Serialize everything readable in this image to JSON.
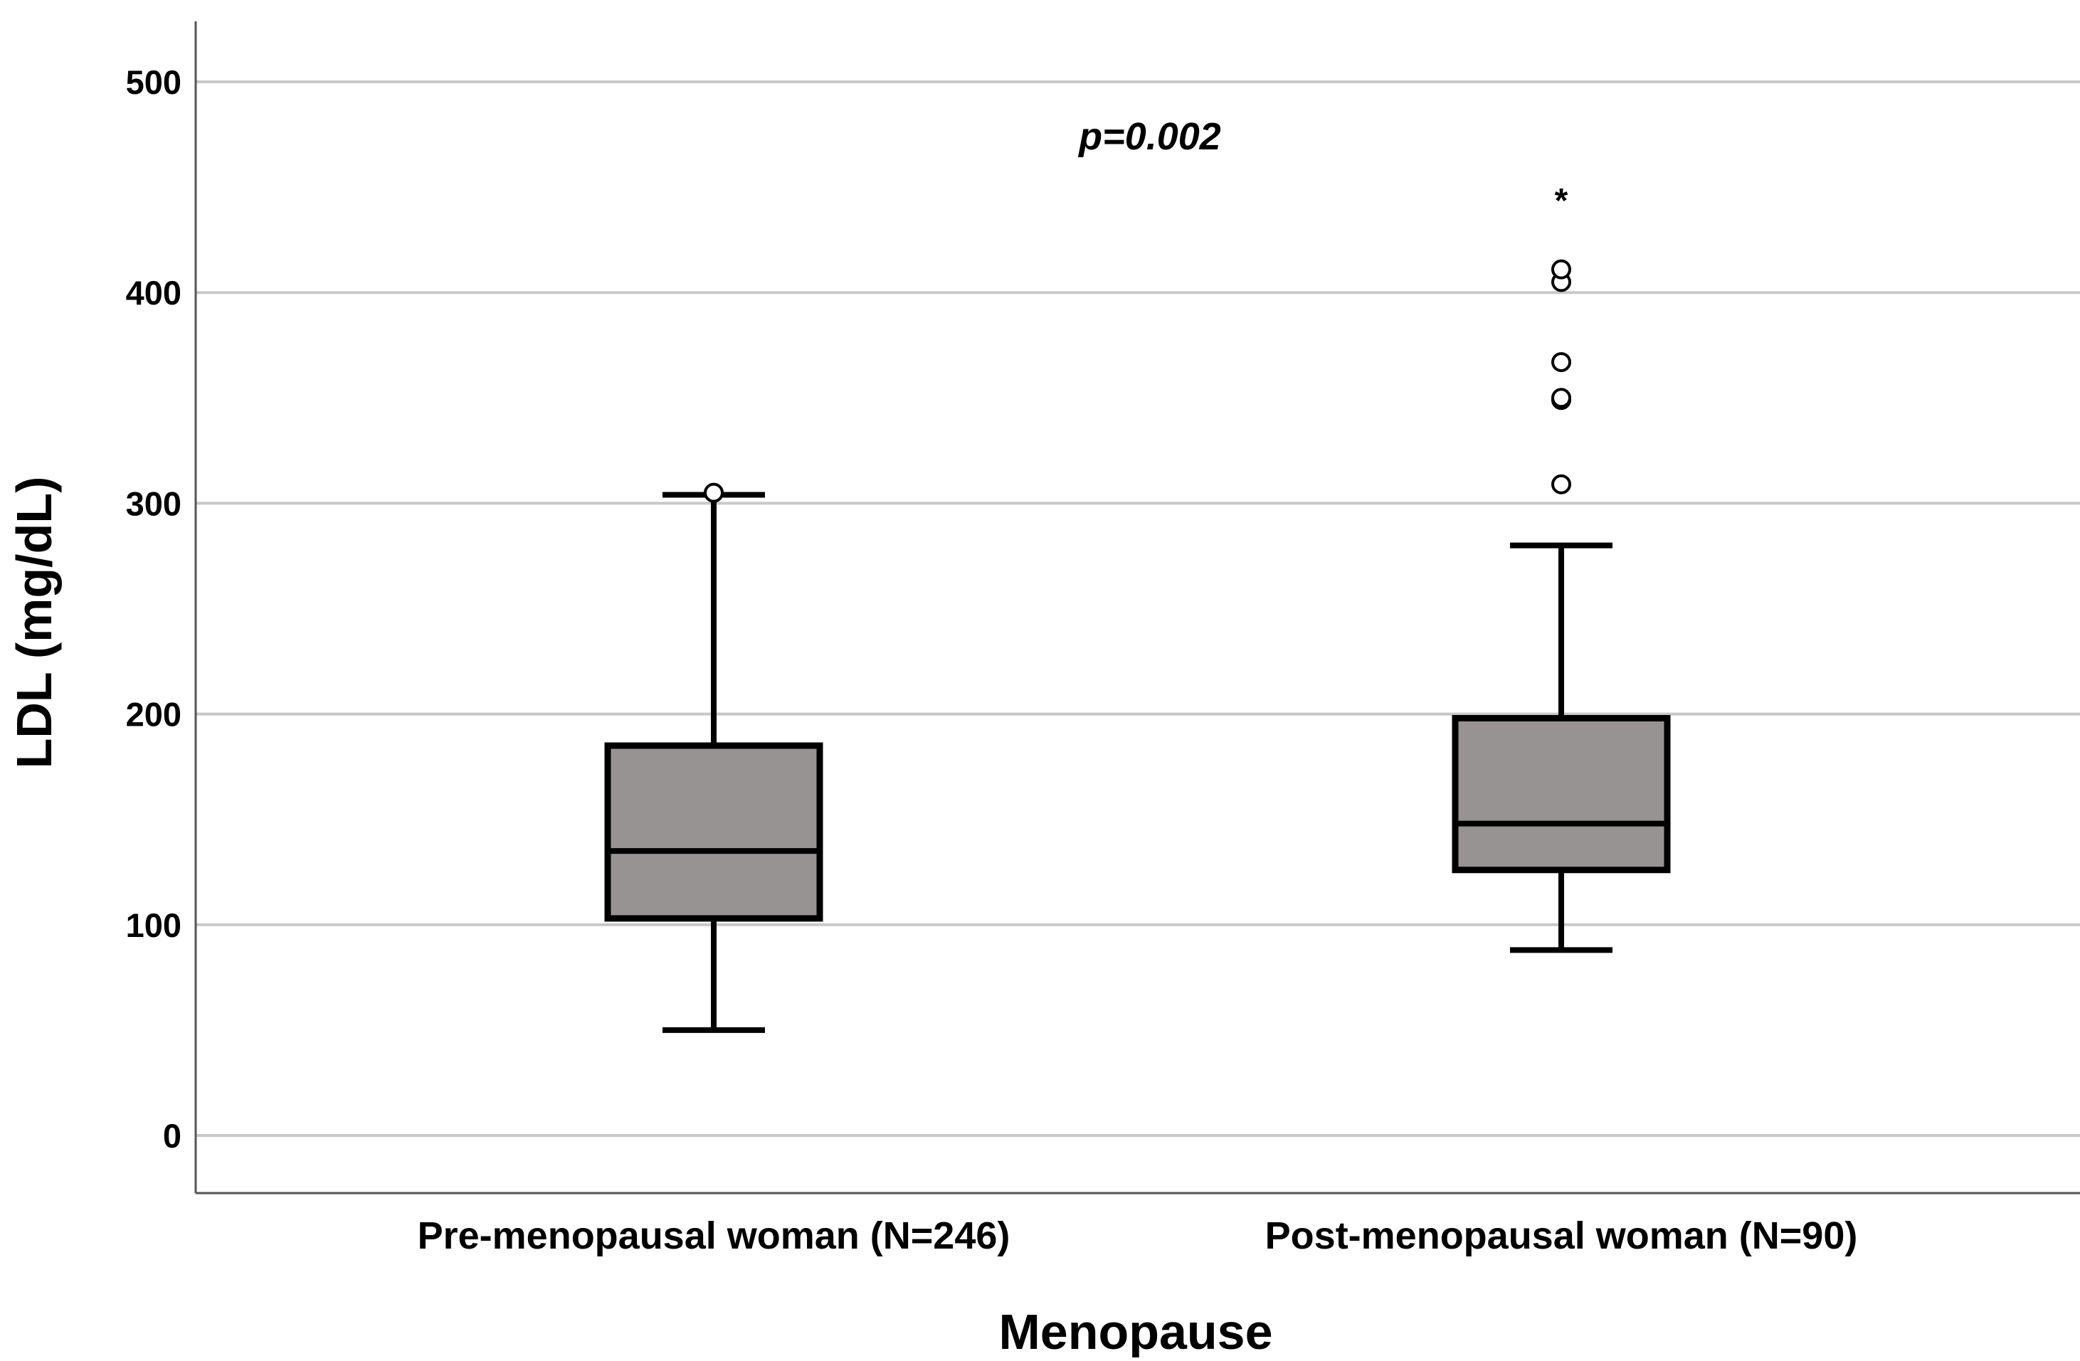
{
  "chart_data": {
    "type": "boxplot",
    "title": "",
    "xlabel": "Menopause",
    "ylabel": "LDL (mg/dL)",
    "ylim": [
      -27,
      530
    ],
    "yticks": [
      0,
      100,
      200,
      300,
      400,
      500
    ],
    "grid": true,
    "annotation": "p=0.002",
    "categories": [
      "Pre-menopausal woman (N=246)",
      "Post-menopausal woman (N=90)"
    ],
    "boxes": [
      {
        "name": "Pre-menopausal woman (N=246)",
        "whisker_low": 50,
        "q1": 103,
        "median": 135,
        "q3": 185,
        "whisker_high": 304,
        "outliers": [
          305
        ],
        "extremes": []
      },
      {
        "name": "Post-menopausal woman (N=90)",
        "whisker_low": 88,
        "q1": 126,
        "median": 148,
        "q3": 198,
        "whisker_high": 280,
        "outliers": [
          309,
          349,
          350,
          367,
          405,
          411
        ],
        "extremes": [
          445
        ]
      }
    ],
    "colors": {
      "box_fill": "#969392",
      "stroke": "#000000",
      "grid": "#c8c8c8",
      "axis": "#555555"
    }
  }
}
